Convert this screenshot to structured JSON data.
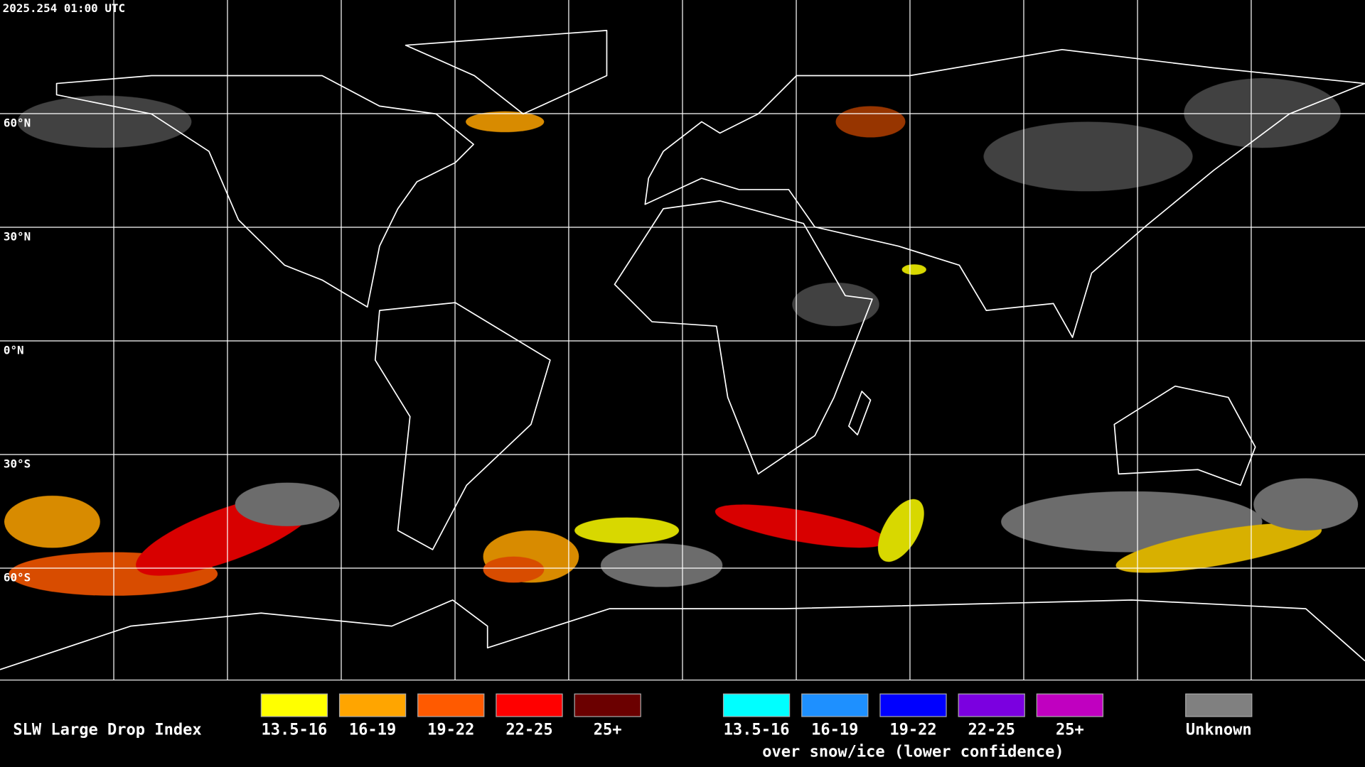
{
  "header": {
    "timestamp": "2025.254 01:00 UTC"
  },
  "map": {
    "latitude_labels": [
      "60°N",
      "30°N",
      "0°N",
      "30°S",
      "60°S"
    ]
  },
  "legend": {
    "title": "SLW Large Drop Index",
    "standard": [
      {
        "label": "13.5-16",
        "color": "#ffff00"
      },
      {
        "label": "16-19",
        "color": "#ffa500"
      },
      {
        "label": "19-22",
        "color": "#ff5a00"
      },
      {
        "label": "22-25",
        "color": "#ff0000"
      },
      {
        "label": "25+",
        "color": "#6b0000"
      }
    ],
    "snow_ice": [
      {
        "label": "13.5-16",
        "color": "#00ffff"
      },
      {
        "label": "16-19",
        "color": "#1e90ff"
      },
      {
        "label": "19-22",
        "color": "#0000ff"
      },
      {
        "label": "22-25",
        "color": "#7b00e0"
      },
      {
        "label": "25+",
        "color": "#c000c0"
      }
    ],
    "snow_ice_caption": "over snow/ice (lower confidence)",
    "unknown": {
      "label": "Unknown",
      "color": "#808080"
    }
  }
}
